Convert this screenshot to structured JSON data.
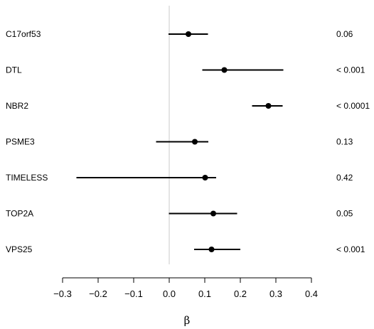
{
  "chart_data": {
    "type": "forest",
    "xlabel": "β",
    "xlim": [
      -0.3,
      0.4
    ],
    "x_ticks": [
      -0.3,
      -0.2,
      -0.1,
      0.0,
      0.1,
      0.2,
      0.3,
      0.4
    ],
    "x_tick_labels": [
      "−0.3",
      "−0.2",
      "−0.1",
      "0.0",
      "0.1",
      "0.2",
      "0.3",
      "0.4"
    ],
    "reference_line": 0.0,
    "rows": [
      {
        "label": "C17orf53",
        "estimate": 0.054,
        "lower": -0.002,
        "upper": 0.109,
        "p": "0.06"
      },
      {
        "label": "DTL",
        "estimate": 0.155,
        "lower": 0.093,
        "upper": 0.321,
        "p": "< 0.001"
      },
      {
        "label": "NBR2",
        "estimate": 0.279,
        "lower": 0.233,
        "upper": 0.319,
        "p": "< 0.0001"
      },
      {
        "label": "PSME3",
        "estimate": 0.072,
        "lower": -0.037,
        "upper": 0.11,
        "p": "0.13"
      },
      {
        "label": "TIMELESS",
        "estimate": 0.101,
        "lower": -0.261,
        "upper": 0.132,
        "p": "0.42"
      },
      {
        "label": "TOP2A",
        "estimate": 0.124,
        "lower": -0.001,
        "upper": 0.191,
        "p": "0.05"
      },
      {
        "label": "VPS25",
        "estimate": 0.119,
        "lower": 0.07,
        "upper": 0.2,
        "p": "< 0.001"
      }
    ]
  }
}
